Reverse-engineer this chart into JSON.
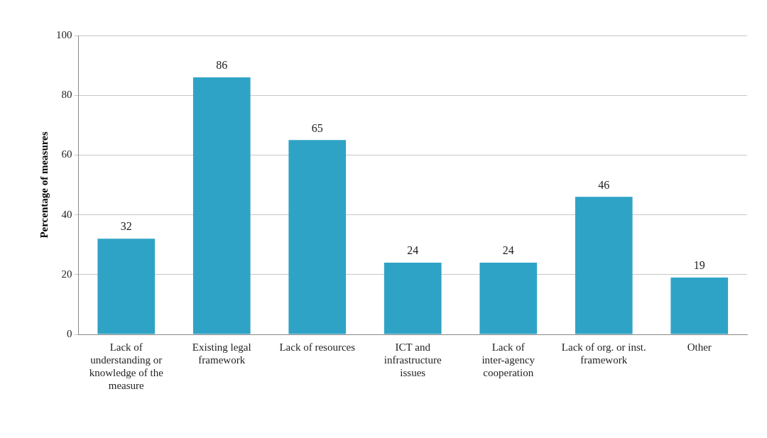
{
  "chart_data": {
    "type": "bar",
    "ylabel": "Percentage of measures",
    "categories": [
      "Lack of understanding or knowledge of the measure",
      "Existing legal framework",
      "Lack of resources",
      "ICT and infrastructure issues",
      "Lack of inter-agency cooperation",
      "Lack of org. or inst. framework",
      "Other"
    ],
    "values": [
      32,
      86,
      65,
      24,
      24,
      46,
      19
    ],
    "color": "#2fa3c6",
    "ylim": [
      0,
      100
    ],
    "yticks": [
      0,
      20,
      40,
      60,
      80,
      100
    ],
    "grid": "y",
    "data_labels": true
  }
}
